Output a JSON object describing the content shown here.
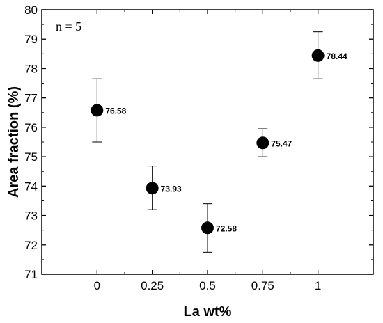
{
  "chart_data": {
    "type": "scatter",
    "title": "",
    "xlabel": "La wt%",
    "ylabel": "Area fraction (%)",
    "annotation": "n = 5",
    "x_categories": [
      "0",
      "0.25",
      "0.5",
      "0.75",
      "1"
    ],
    "xlim": [
      -0.25,
      1.25
    ],
    "ylim": [
      71,
      80
    ],
    "y_ticks": [
      "71",
      "72",
      "73",
      "74",
      "75",
      "76",
      "77",
      "78",
      "79",
      "80"
    ],
    "grid": false,
    "legend": "none",
    "marker_color": "#000000",
    "points": [
      {
        "x": 0,
        "y": 76.58,
        "label": "76.58",
        "err_low": 75.5,
        "err_high": 77.65
      },
      {
        "x": 0.25,
        "y": 73.93,
        "label": "73.93",
        "err_low": 73.2,
        "err_high": 74.68
      },
      {
        "x": 0.5,
        "y": 72.58,
        "label": "72.58",
        "err_low": 71.75,
        "err_high": 73.4
      },
      {
        "x": 0.75,
        "y": 75.47,
        "label": "75.47",
        "err_low": 75.0,
        "err_high": 75.95
      },
      {
        "x": 1,
        "y": 78.44,
        "label": "78.44",
        "err_low": 77.65,
        "err_high": 79.25
      }
    ]
  }
}
